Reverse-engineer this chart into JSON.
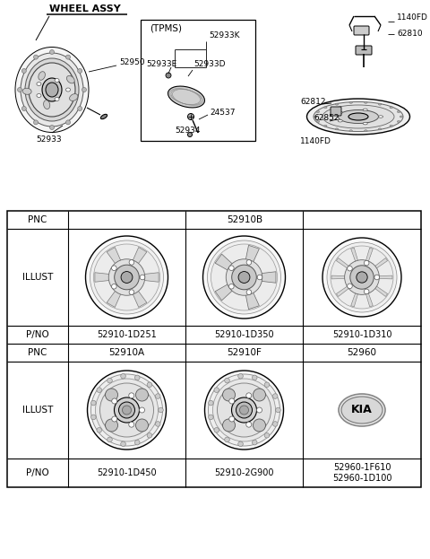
{
  "title": "WHEEL ASSY",
  "bg_color": "#ffffff",
  "text_color": "#000000",
  "table": {
    "row_labels": [
      "PNC",
      "ILLUST",
      "P/NO",
      "PNC",
      "ILLUST",
      "P/NO"
    ],
    "col1_pnc": "52910B",
    "row1_pno": [
      "52910-1D251",
      "52910-1D350",
      "52910-1D310"
    ],
    "row2_pnc": [
      "52910A",
      "52910F",
      "52960"
    ],
    "row2_pno": [
      "52910-1D450",
      "52910-2G900",
      "52960-1F610\n52960-1D100"
    ]
  },
  "tpms_labels": [
    "(TPMS)",
    "52933K",
    "52933E",
    "52933D",
    "24537",
    "52934"
  ],
  "wheel_labels_left": [
    "52950",
    "52933"
  ],
  "spare_labels": [
    "1140FD",
    "62810",
    "62812",
    "62852",
    "1140FD"
  ]
}
